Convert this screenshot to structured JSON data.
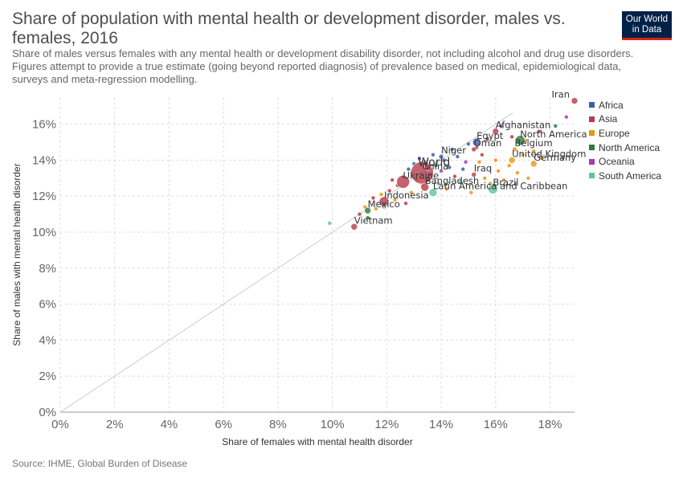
{
  "header": {
    "title": "Share of population with mental health or development disorder, males vs. females, 2016",
    "subtitle": "Share of males versus females with any mental health or development disability disorder, not including alcohol and drug use disorders. Figures attempt to provide a true estimate (going beyond reported diagnosis) of prevalence based on medical, epidemiological data, surveys and meta-regression modelling.",
    "logo_line1": "Our World",
    "logo_line2": "in Data"
  },
  "footer": {
    "source": "Source: IHME, Global Burden of Disease"
  },
  "colors": {
    "Africa": "#3c5ea8",
    "Asia": "#b73c4c",
    "Europe": "#e6960f",
    "North America": "#2f7a3a",
    "Oceania": "#a03cb4",
    "South America": "#5ec49a",
    "grid": "#dddddd",
    "diagonal": "#cccccc",
    "label": "#333333"
  },
  "chart_data": {
    "type": "scatter",
    "title": "Share of population with mental health or development disorder, males vs. females, 2016",
    "xlabel": "Share of females with mental health disorder",
    "ylabel": "Share of males with mental health disorder",
    "xlim": [
      0,
      18.9
    ],
    "ylim": [
      0,
      17.5
    ],
    "xticks": [
      "0%",
      "2%",
      "4%",
      "6%",
      "8%",
      "10%",
      "12%",
      "14%",
      "16%",
      "18%"
    ],
    "yticks": [
      "0%",
      "2%",
      "4%",
      "6%",
      "8%",
      "10%",
      "12%",
      "14%",
      "16%"
    ],
    "grid": "horizontal dashed",
    "diagonal": "y = x reference line",
    "legend_position": "right",
    "legend": [
      "Africa",
      "Asia",
      "Europe",
      "North America",
      "Oceania",
      "South America"
    ],
    "labeled_points": [
      {
        "label": "Iran",
        "x": 18.9,
        "y": 17.3,
        "group": "Asia",
        "size": 4
      },
      {
        "label": "Afghanistan",
        "x": 16.0,
        "y": 15.6,
        "group": "Asia",
        "size": 4
      },
      {
        "label": "North America",
        "x": 16.9,
        "y": 15.1,
        "group": "North America",
        "size": 6
      },
      {
        "label": "Egypt",
        "x": 15.3,
        "y": 15.0,
        "group": "Africa",
        "size": 5
      },
      {
        "label": "Niger",
        "x": 14.0,
        "y": 14.2,
        "group": "Africa",
        "size": 3
      },
      {
        "label": "Oman",
        "x": 15.2,
        "y": 14.6,
        "group": "Asia",
        "size": 3
      },
      {
        "label": "Belgium",
        "x": 16.7,
        "y": 14.6,
        "group": "Europe",
        "size": 3
      },
      {
        "label": "World",
        "x": 13.5,
        "y": 13.6,
        "group": "Asia",
        "size": 4
      },
      {
        "label": "United Kingdom",
        "x": 16.6,
        "y": 14.0,
        "group": "Europe",
        "size": 4
      },
      {
        "label": "Iraq",
        "x": 15.2,
        "y": 13.2,
        "group": "Asia",
        "size": 3
      },
      {
        "label": "China",
        "x": 13.3,
        "y": 13.3,
        "group": "Asia",
        "size": 14
      },
      {
        "label": "Germany",
        "x": 17.4,
        "y": 13.8,
        "group": "Europe",
        "size": 4
      },
      {
        "label": "Brazil",
        "x": 15.9,
        "y": 12.4,
        "group": "South America",
        "size": 6
      },
      {
        "label": "Ukraine",
        "x": 12.6,
        "y": 12.8,
        "group": "Asia",
        "size": 8
      },
      {
        "label": "Bangladesh",
        "x": 13.4,
        "y": 12.5,
        "group": "Asia",
        "size": 5
      },
      {
        "label": "Latin America and Caribbean",
        "x": 13.7,
        "y": 12.2,
        "group": "South America",
        "size": 5
      },
      {
        "label": "Indonesia",
        "x": 11.9,
        "y": 11.7,
        "group": "Asia",
        "size": 6
      },
      {
        "label": "Mexico",
        "x": 11.3,
        "y": 11.2,
        "group": "North America",
        "size": 4
      },
      {
        "label": "Vietnam",
        "x": 10.8,
        "y": 10.3,
        "group": "Asia",
        "size": 4
      }
    ],
    "points": [
      {
        "x": 9.9,
        "y": 10.5,
        "group": "South America"
      },
      {
        "x": 11.3,
        "y": 10.8,
        "group": "North America"
      },
      {
        "x": 11.0,
        "y": 11.0,
        "group": "Asia"
      },
      {
        "x": 11.2,
        "y": 11.4,
        "group": "Europe"
      },
      {
        "x": 11.6,
        "y": 11.3,
        "group": "Europe"
      },
      {
        "x": 11.5,
        "y": 11.9,
        "group": "Asia"
      },
      {
        "x": 11.8,
        "y": 12.1,
        "group": "Europe"
      },
      {
        "x": 12.1,
        "y": 12.3,
        "group": "Asia"
      },
      {
        "x": 12.3,
        "y": 11.8,
        "group": "Europe"
      },
      {
        "x": 12.4,
        "y": 12.6,
        "group": "Asia"
      },
      {
        "x": 12.6,
        "y": 13.1,
        "group": "Africa"
      },
      {
        "x": 12.8,
        "y": 13.5,
        "group": "Africa"
      },
      {
        "x": 12.9,
        "y": 12.2,
        "group": "Europe"
      },
      {
        "x": 13.0,
        "y": 13.8,
        "group": "Africa"
      },
      {
        "x": 13.1,
        "y": 12.9,
        "group": "Europe"
      },
      {
        "x": 13.2,
        "y": 14.1,
        "group": "Africa"
      },
      {
        "x": 13.4,
        "y": 13.9,
        "group": "Africa"
      },
      {
        "x": 13.5,
        "y": 12.9,
        "group": "Europe"
      },
      {
        "x": 13.6,
        "y": 13.2,
        "group": "Oceania"
      },
      {
        "x": 13.7,
        "y": 14.3,
        "group": "Africa"
      },
      {
        "x": 13.8,
        "y": 13.7,
        "group": "Africa"
      },
      {
        "x": 13.9,
        "y": 12.7,
        "group": "South America"
      },
      {
        "x": 14.0,
        "y": 13.4,
        "group": "Oceania"
      },
      {
        "x": 14.1,
        "y": 14.0,
        "group": "Africa"
      },
      {
        "x": 14.2,
        "y": 12.4,
        "group": "Europe"
      },
      {
        "x": 14.3,
        "y": 13.6,
        "group": "Africa"
      },
      {
        "x": 14.4,
        "y": 14.6,
        "group": "Africa"
      },
      {
        "x": 14.5,
        "y": 13.1,
        "group": "Asia"
      },
      {
        "x": 14.6,
        "y": 14.2,
        "group": "Africa"
      },
      {
        "x": 14.7,
        "y": 12.8,
        "group": "South America"
      },
      {
        "x": 14.8,
        "y": 13.5,
        "group": "Africa"
      },
      {
        "x": 15.0,
        "y": 14.9,
        "group": "Africa"
      },
      {
        "x": 15.1,
        "y": 12.2,
        "group": "Europe"
      },
      {
        "x": 15.4,
        "y": 13.9,
        "group": "Europe"
      },
      {
        "x": 15.5,
        "y": 14.3,
        "group": "Asia"
      },
      {
        "x": 15.6,
        "y": 13.0,
        "group": "Europe"
      },
      {
        "x": 15.7,
        "y": 15.2,
        "group": "Asia"
      },
      {
        "x": 15.8,
        "y": 12.7,
        "group": "Europe"
      },
      {
        "x": 16.0,
        "y": 14.0,
        "group": "Europe"
      },
      {
        "x": 16.1,
        "y": 13.4,
        "group": "Europe"
      },
      {
        "x": 16.2,
        "y": 15.9,
        "group": "Oceania"
      },
      {
        "x": 16.3,
        "y": 12.9,
        "group": "Europe"
      },
      {
        "x": 16.5,
        "y": 13.7,
        "group": "Europe"
      },
      {
        "x": 16.6,
        "y": 15.3,
        "group": "Asia"
      },
      {
        "x": 16.8,
        "y": 13.3,
        "group": "Europe"
      },
      {
        "x": 17.0,
        "y": 14.3,
        "group": "Europe"
      },
      {
        "x": 17.1,
        "y": 15.1,
        "group": "Europe"
      },
      {
        "x": 17.2,
        "y": 13.0,
        "group": "Europe"
      },
      {
        "x": 17.4,
        "y": 14.5,
        "group": "Europe"
      },
      {
        "x": 17.6,
        "y": 15.6,
        "group": "Asia"
      },
      {
        "x": 17.7,
        "y": 14.1,
        "group": "Europe"
      },
      {
        "x": 18.2,
        "y": 15.9,
        "group": "North America"
      },
      {
        "x": 18.6,
        "y": 16.4,
        "group": "Oceania"
      },
      {
        "x": 12.2,
        "y": 12.9,
        "group": "Asia"
      },
      {
        "x": 13.3,
        "y": 12.6,
        "group": "Europe"
      },
      {
        "x": 14.9,
        "y": 13.9,
        "group": "Oceania"
      },
      {
        "x": 15.3,
        "y": 14.7,
        "group": "Asia"
      },
      {
        "x": 11.9,
        "y": 11.4,
        "group": "South America"
      },
      {
        "x": 12.7,
        "y": 11.6,
        "group": "Asia"
      }
    ]
  }
}
